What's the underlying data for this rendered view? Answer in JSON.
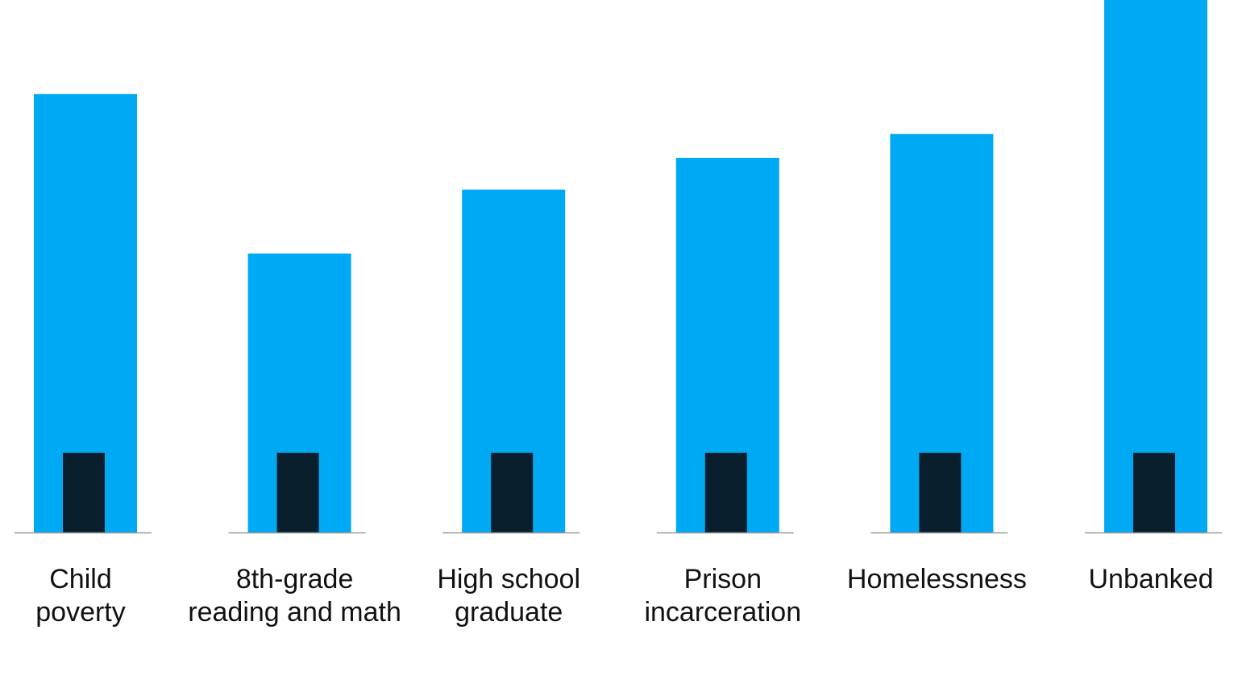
{
  "chart_data": {
    "type": "bar",
    "title": "",
    "xlabel": "",
    "ylabel": "",
    "categories": [
      [
        "Child",
        "poverty"
      ],
      [
        "8th-grade",
        "reading and math"
      ],
      [
        "High school",
        "graduate"
      ],
      [
        "Prison",
        "incarceration"
      ],
      [
        "Homelessness"
      ],
      [
        "Unbanked"
      ]
    ],
    "series": [
      {
        "values": [
          5.5,
          3.5,
          4.3,
          4.7,
          5.0,
          6.7
        ],
        "color": "#00a9f4"
      },
      {
        "values": [
          1,
          1,
          1,
          1,
          1,
          1
        ],
        "color": "#0a1f2e"
      }
    ],
    "ylim": [
      0,
      6.68
    ],
    "grid": false,
    "axis_labels_shown": false,
    "overlapping_bars": true
  }
}
